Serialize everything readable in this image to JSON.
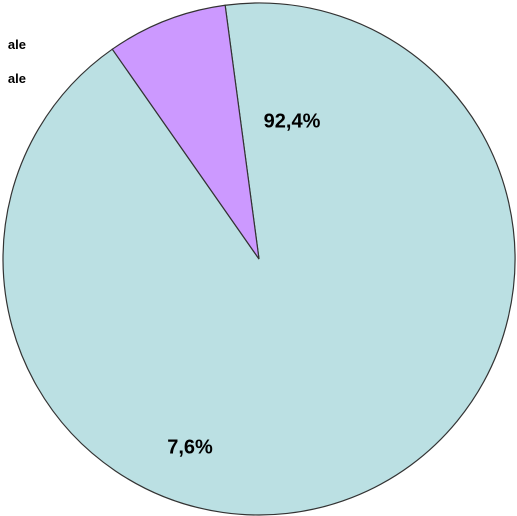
{
  "chart_data": {
    "type": "pie",
    "title": "",
    "legend": {
      "placement": "top-left",
      "entries": [
        "ale",
        "ale"
      ]
    },
    "slices": [
      {
        "label": "92,4%",
        "value": 92.4,
        "color": "#bbe0e3"
      },
      {
        "label": "7,6%",
        "value": 7.6,
        "color": "#cc99ff"
      }
    ],
    "start_angle_deg": -7.6,
    "border_color": "#333333"
  }
}
